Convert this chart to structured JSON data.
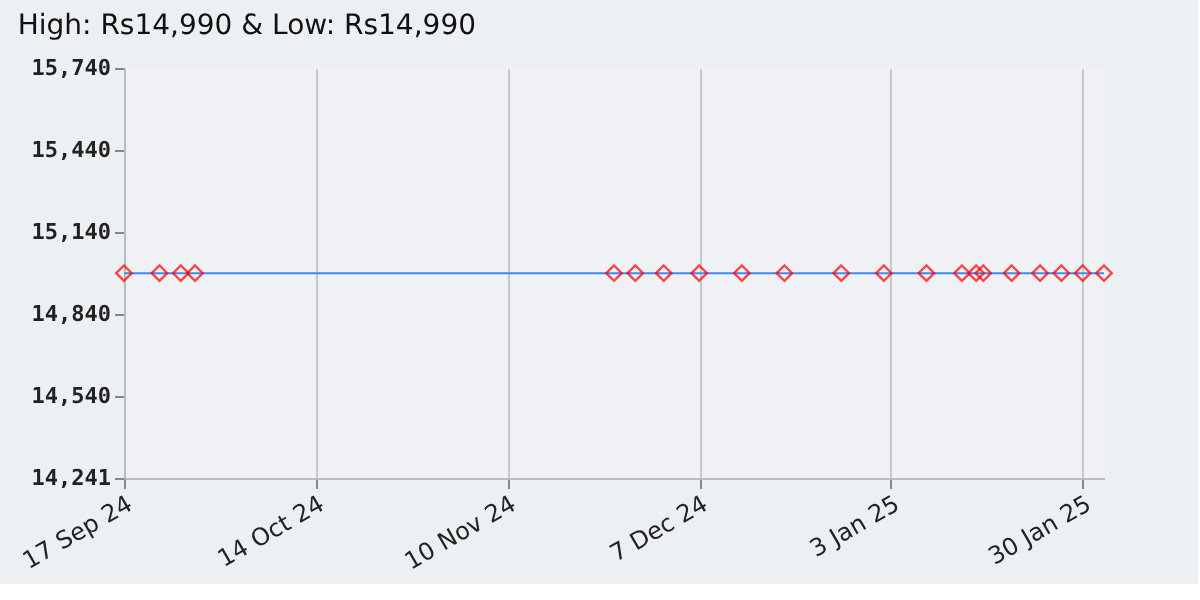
{
  "chart_data": {
    "type": "line",
    "title": "High: Rs14,990 & Low: Rs14,990",
    "x": [
      "2024-09-17",
      "2024-09-22",
      "2024-09-25",
      "2024-09-27",
      "2024-11-25",
      "2024-11-28",
      "2024-12-02",
      "2024-12-07",
      "2024-12-13",
      "2024-12-19",
      "2024-12-27",
      "2025-01-02",
      "2025-01-08",
      "2025-01-13",
      "2025-01-15",
      "2025-01-16",
      "2025-01-20",
      "2025-01-24",
      "2025-01-27",
      "2025-01-30",
      "2025-02-02"
    ],
    "series": [
      {
        "color": "#3d8af7",
        "values": [
          14990,
          14990,
          14990,
          14990,
          14990,
          14990,
          14990,
          14990,
          14990,
          14990,
          14990,
          14990,
          14990,
          14990,
          14990,
          14990,
          14990,
          14990,
          14990,
          14990,
          14990
        ]
      }
    ],
    "marker": "diamond",
    "line_style": "solid",
    "xlim": [
      "2024-09-17",
      "2025-02-02"
    ],
    "xticks": [
      {
        "value": "2024-09-17",
        "label": "17 Sep 24"
      },
      {
        "value": "2024-10-14",
        "label": "14 Oct 24"
      },
      {
        "value": "2024-11-10",
        "label": "10 Nov 24"
      },
      {
        "value": "2024-12-07",
        "label": "7 Dec 24"
      },
      {
        "value": "2025-01-03",
        "label": "3 Jan 25"
      },
      {
        "value": "2025-01-30",
        "label": "30 Jan 25"
      }
    ],
    "ylim": [
      14241,
      15740
    ],
    "yticks": [
      {
        "value": 14241,
        "label": "14,241"
      },
      {
        "value": 14540,
        "label": "14,540"
      },
      {
        "value": 14840,
        "label": "14,840"
      },
      {
        "value": 15140,
        "label": "15,140"
      },
      {
        "value": 15440,
        "label": "15,440"
      },
      {
        "value": 15740,
        "label": "15,740"
      }
    ],
    "grid": "x"
  }
}
